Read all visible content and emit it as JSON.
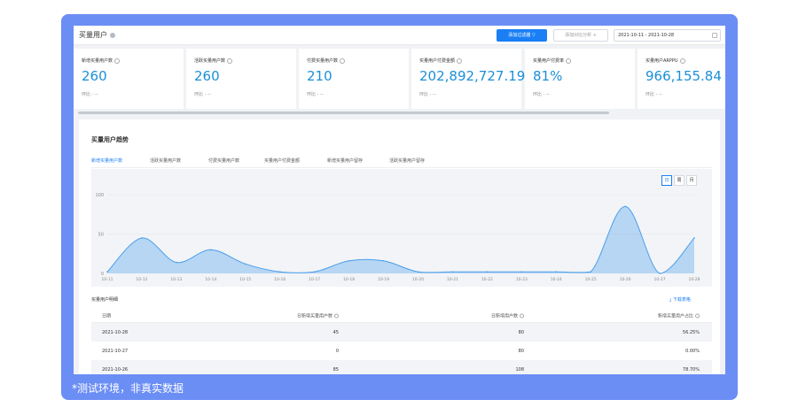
{
  "page": {
    "title": "买量用户",
    "caption": "*测试环境，非真实数据"
  },
  "toolbar": {
    "filter_label": "添加过滤器",
    "compare_label": "添加对比分析",
    "date_range": "2021-10-11 - 2021-10-28"
  },
  "metrics": [
    {
      "label": "新增买量用户数",
      "value": "260",
      "compare": "环比 - --"
    },
    {
      "label": "活跃买量用户数",
      "value": "260",
      "compare": "环比 - --"
    },
    {
      "label": "付费买量用户数",
      "value": "210",
      "compare": "环比 - --"
    },
    {
      "label": "买量用户付费金额",
      "value": "202,892,727.19",
      "compare": "环比 - --"
    },
    {
      "label": "买量用户付费率",
      "value": "81%",
      "compare": "环比 - --"
    },
    {
      "label": "买量用户ARPPU",
      "value": "966,155.84",
      "compare": "环比 - --"
    }
  ],
  "trend": {
    "title": "买量用户趋势",
    "tabs": [
      "新增买量用户数",
      "活跃买量用户数",
      "付费买量用户数",
      "买量用户付费金额",
      "新增买量用户留存",
      "活跃买量用户留存"
    ],
    "active_tab": 0,
    "granularity": [
      "日",
      "周",
      "月"
    ],
    "active_granularity": 0
  },
  "chart_data": {
    "type": "area",
    "x": [
      "10-11",
      "10-12",
      "10-13",
      "10-14",
      "10-15",
      "10-16",
      "10-17",
      "10-18",
      "10-19",
      "10-20",
      "10-21",
      "10-22",
      "10-23",
      "10-24",
      "10-25",
      "10-26",
      "10-27",
      "10-28"
    ],
    "series": [
      {
        "values": [
          2,
          45,
          14,
          30,
          12,
          2,
          2,
          16,
          16,
          2,
          2,
          2,
          2,
          2,
          2,
          85,
          0,
          45
        ]
      }
    ],
    "ylim": [
      0,
      100
    ],
    "yticks": [
      0,
      50,
      100
    ],
    "color": "#4a9eea"
  },
  "detail": {
    "title": "买量用户明细",
    "download_label": "下载表格",
    "columns": [
      "日期",
      "日新增买量用户数",
      "日新增用户数",
      "新增买量用户占比"
    ],
    "rows": [
      [
        "2021-10-28",
        "45",
        "80",
        "56.25%"
      ],
      [
        "2021-10-27",
        "0",
        "80",
        "0.00%"
      ],
      [
        "2021-10-26",
        "85",
        "108",
        "78.70%"
      ]
    ]
  }
}
